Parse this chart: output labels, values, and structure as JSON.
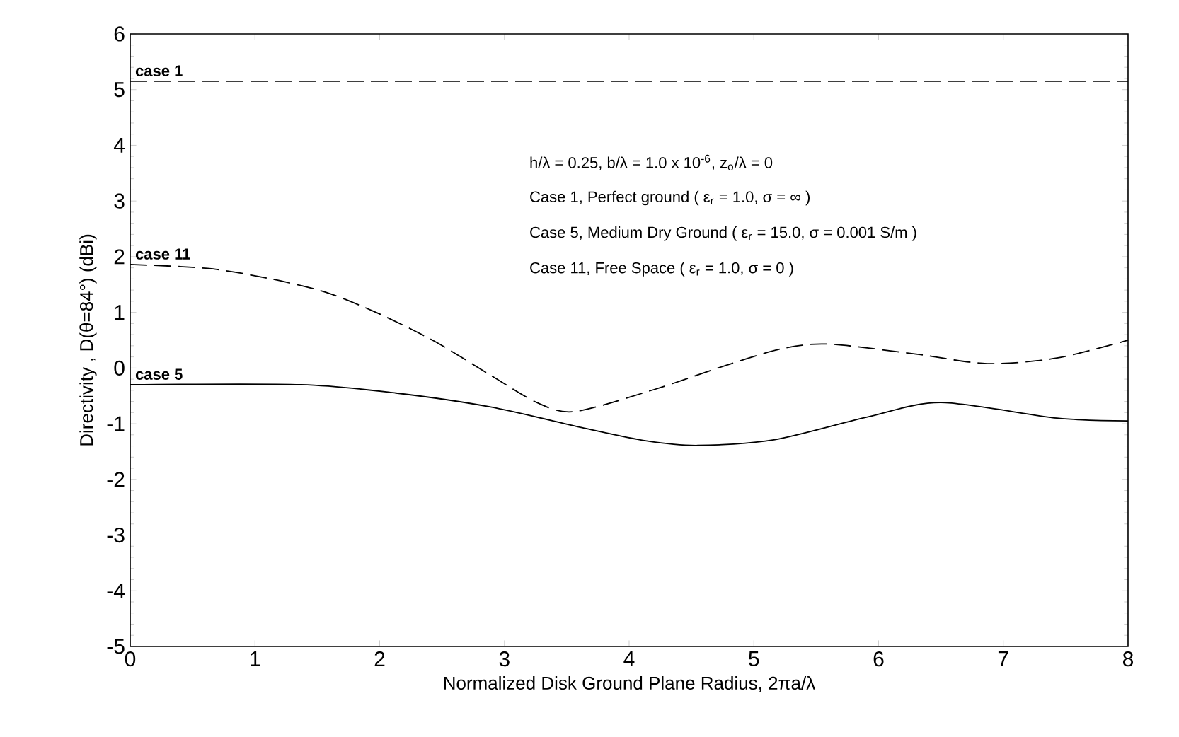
{
  "chart_data": {
    "type": "line",
    "xlabel": "Normalized Disk Ground Plane Radius, 2πa/λ",
    "ylabel": "Directivity , D(θ=84°) (dBi)",
    "xlim": [
      0,
      8
    ],
    "ylim": [
      -5,
      6
    ],
    "xticks": [
      0,
      1,
      2,
      3,
      4,
      5,
      6,
      7,
      8
    ],
    "yticks": [
      -5,
      -4,
      -3,
      -2,
      -1,
      0,
      1,
      2,
      3,
      4,
      5,
      6
    ],
    "grid": false,
    "series": [
      {
        "name": "case 1",
        "color": "#000000",
        "line_style": "dashed",
        "x": [
          0,
          8
        ],
        "values": [
          5.15,
          5.15
        ]
      },
      {
        "name": "case 11",
        "color": "#000000",
        "line_style": "dashed",
        "x": [
          0,
          0.62,
          1.11,
          1.57,
          1.99,
          2.44,
          2.89,
          3.27,
          3.57,
          4.21,
          4.78,
          5.23,
          5.6,
          6.3,
          6.87,
          7.43,
          8
        ],
        "values": [
          1.86,
          1.79,
          1.61,
          1.36,
          0.98,
          0.48,
          -0.13,
          -0.63,
          -0.78,
          -0.38,
          0.05,
          0.35,
          0.43,
          0.25,
          0.08,
          0.18,
          0.5
        ]
      },
      {
        "name": "case 5",
        "color": "#000000",
        "line_style": "solid",
        "x": [
          0,
          1.37,
          2.13,
          2.89,
          3.64,
          4.14,
          4.55,
          5.16,
          5.91,
          6.5,
          7.43,
          8
        ],
        "values": [
          -0.3,
          -0.3,
          -0.45,
          -0.7,
          -1.08,
          -1.31,
          -1.39,
          -1.29,
          -0.88,
          -0.62,
          -0.9,
          -0.95
        ]
      }
    ],
    "annotations": [
      "h/λ = 0.25,  b/λ = 1.0 x 10$^{-6}$,  z$_{o}$/λ = 0",
      "Case 1, Perfect ground ( ε$_{r}$ = 1.0, σ = ∞ )",
      "Case 5, Medium Dry Ground ( ε$_{r}$ = 15.0, σ = 0.001 S/m )",
      "Case 11, Free Space ( ε$_{r}$ = 1.0, σ = 0 )"
    ]
  }
}
